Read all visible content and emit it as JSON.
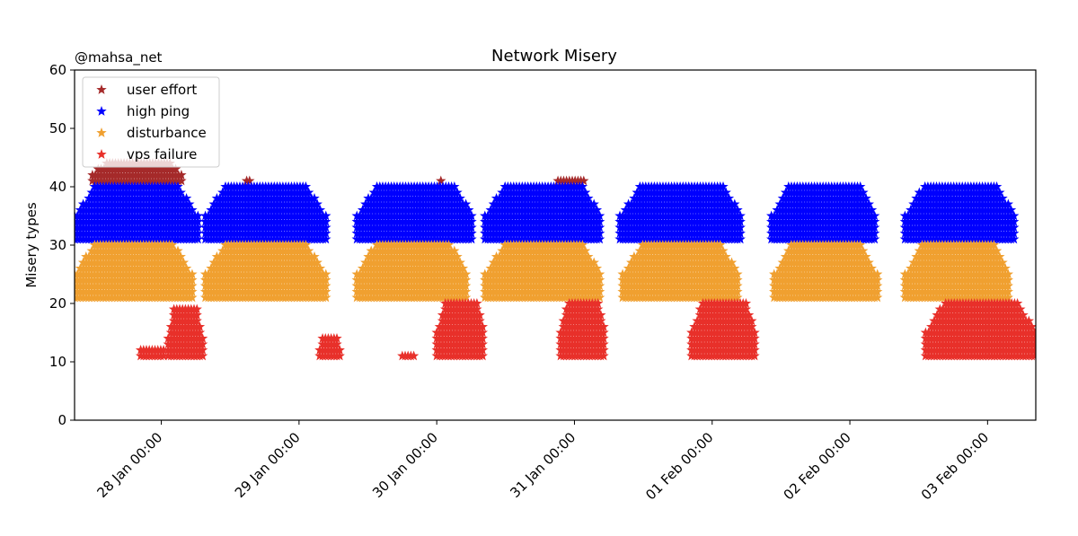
{
  "chart_data": {
    "type": "scatter",
    "title": "Network Misery",
    "watermark": "@mahsa_net",
    "xlabel": "",
    "ylabel": "Misery types",
    "ylim": [
      0,
      60
    ],
    "yticks": [
      0,
      10,
      20,
      30,
      40,
      50,
      60
    ],
    "xlim_days": [
      -0.63,
      6.35
    ],
    "xticks": [
      {
        "day": 0,
        "label": "28 Jan 00:00"
      },
      {
        "day": 1,
        "label": "29 Jan 00:00"
      },
      {
        "day": 2,
        "label": "30 Jan 00:00"
      },
      {
        "day": 3,
        "label": "31 Jan 00:00"
      },
      {
        "day": 4,
        "label": "01 Feb 00:00"
      },
      {
        "day": 5,
        "label": "02 Feb 00:00"
      },
      {
        "day": 6,
        "label": "03 Feb 00:00"
      }
    ],
    "legend_position": "top-left",
    "marker": "star",
    "series": [
      {
        "name": "user effort",
        "color": "#a52a2a",
        "base": 40,
        "segments": [
          {
            "start": -0.5,
            "end": 0.15,
            "max": 4
          },
          {
            "start": 0.62,
            "end": 0.65,
            "max": 1
          },
          {
            "start": 2.03,
            "end": 2.05,
            "max": 1
          },
          {
            "start": 2.88,
            "end": 3.08,
            "max": 1
          }
        ]
      },
      {
        "name": "high ping",
        "color": "#0000ff",
        "base": 30,
        "segments": [
          {
            "start": -0.63,
            "end": 0.27,
            "max": 10
          },
          {
            "start": 0.32,
            "end": 1.2,
            "max": 10
          },
          {
            "start": 1.42,
            "end": 2.27,
            "max": 10
          },
          {
            "start": 2.35,
            "end": 3.2,
            "max": 10
          },
          {
            "start": 3.33,
            "end": 4.22,
            "max": 10
          },
          {
            "start": 4.43,
            "end": 5.2,
            "max": 10
          },
          {
            "start": 5.4,
            "end": 6.2,
            "max": 10
          }
        ]
      },
      {
        "name": "disturbance",
        "color": "#f0a030",
        "base": 20,
        "segments": [
          {
            "start": -0.63,
            "end": 0.23,
            "max": 10
          },
          {
            "start": 0.32,
            "end": 1.2,
            "max": 10
          },
          {
            "start": 1.42,
            "end": 2.23,
            "max": 10
          },
          {
            "start": 2.35,
            "end": 3.2,
            "max": 10
          },
          {
            "start": 3.35,
            "end": 4.2,
            "max": 10
          },
          {
            "start": 4.45,
            "end": 5.2,
            "max": 10
          },
          {
            "start": 5.4,
            "end": 6.17,
            "max": 10
          }
        ]
      },
      {
        "name": "vps failure",
        "color": "#e8302a",
        "base": 10,
        "segments": [
          {
            "start": -0.15,
            "end": 0.02,
            "max": 2
          },
          {
            "start": 0.05,
            "end": 0.3,
            "max": 9
          },
          {
            "start": 1.15,
            "end": 1.3,
            "max": 4
          },
          {
            "start": 1.75,
            "end": 1.85,
            "max": 1
          },
          {
            "start": 2.0,
            "end": 2.35,
            "max": 10
          },
          {
            "start": 2.9,
            "end": 3.23,
            "max": 10
          },
          {
            "start": 3.85,
            "end": 4.32,
            "max": 10
          },
          {
            "start": 5.55,
            "end": 6.35,
            "max": 10
          }
        ]
      }
    ]
  }
}
